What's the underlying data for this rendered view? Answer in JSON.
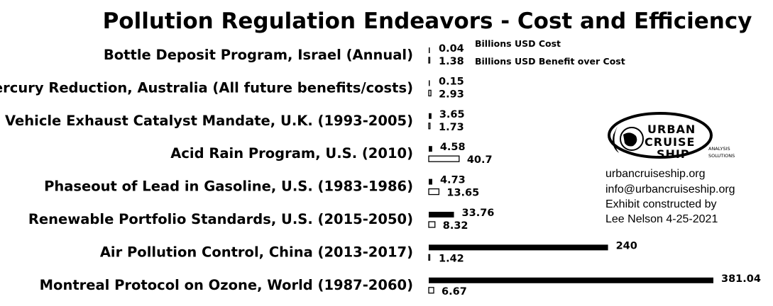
{
  "chart_data": {
    "type": "bar",
    "orientation": "horizontal",
    "title": "Pollution Regulation Endeavors - Cost and Efficiency",
    "categories": [
      "Bottle Deposit Program, Israel (Annual)",
      "Mercury Reduction, Australia (All future benefits/costs)",
      "Vehicle Exhaust Catalyst Mandate, U.K. (1993-2005)",
      "Acid Rain Program, U.S. (2010)",
      "Phaseout of Lead in Gasoline, U.S. (1983-1986)",
      "Renewable Portfolio Standards, U.S. (2015-2050)",
      "Air Pollution Control, China (2013-2017)",
      "Montreal Protocol on Ozone, World (1987-2060)"
    ],
    "series": [
      {
        "name": "Billions USD Cost",
        "values": [
          0.04,
          0.15,
          3.65,
          4.58,
          4.73,
          33.76,
          240,
          381.04
        ],
        "labels": [
          "0.04",
          "0.15",
          "3.65",
          "4.58",
          "4.73",
          "33.76",
          "240",
          "381.04"
        ],
        "color": "#000000"
      },
      {
        "name": "Billions USD Benefit over Cost",
        "values": [
          1.38,
          2.93,
          1.73,
          40.7,
          13.65,
          8.32,
          1.42,
          6.67
        ],
        "labels": [
          "1.38",
          "2.93",
          "1.73",
          "40.7",
          "13.65",
          "8.32",
          "1.42",
          "6.67"
        ],
        "color": "#ffffff"
      }
    ],
    "xlim": [
      0,
      381.04
    ],
    "grid": false,
    "legend": "top-right, beside first category"
  },
  "branding": {
    "logo_line1": "URBAN",
    "logo_line2": "CRUISE",
    "logo_line3": "SHIP",
    "logo_tagline_1": "ANALYSIS",
    "logo_tagline_2": "SOLUTIONS",
    "info_lines": [
      "urbancruiseship.org",
      "info@urbancruiseship.org",
      "Exhibit constructed by",
      "Lee Nelson 4-25-2021"
    ]
  }
}
